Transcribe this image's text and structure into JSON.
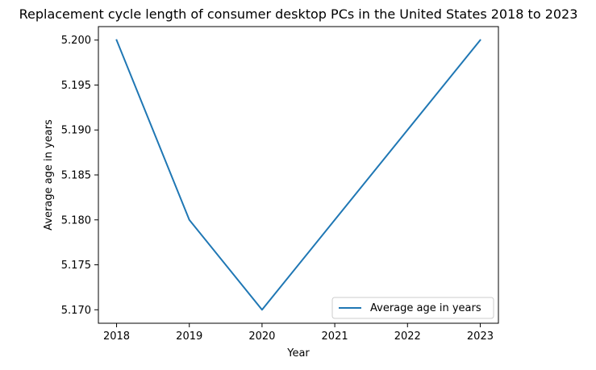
{
  "chart_data": {
    "type": "line",
    "title": "Replacement cycle length of consumer desktop PCs in the United States 2018 to 2023",
    "xlabel": "Year",
    "ylabel": "Average age in years",
    "x": [
      2018,
      2019,
      2020,
      2021,
      2022,
      2023
    ],
    "x_tick_labels": [
      "2018",
      "2019",
      "2020",
      "2021",
      "2022",
      "2023"
    ],
    "y_tick_values": [
      5.17,
      5.175,
      5.18,
      5.185,
      5.19,
      5.195,
      5.2
    ],
    "y_tick_labels": [
      "5.170",
      "5.175",
      "5.180",
      "5.185",
      "5.190",
      "5.195",
      "5.200"
    ],
    "series": [
      {
        "name": "Average age in years",
        "values": [
          5.2,
          5.18,
          5.17,
          5.18,
          5.19,
          5.2
        ],
        "color": "#1f77b4"
      }
    ],
    "xlim": [
      2017.75,
      2023.25
    ],
    "ylim": [
      5.1685,
      5.2015
    ],
    "grid": false,
    "legend_position": "lower-right"
  }
}
